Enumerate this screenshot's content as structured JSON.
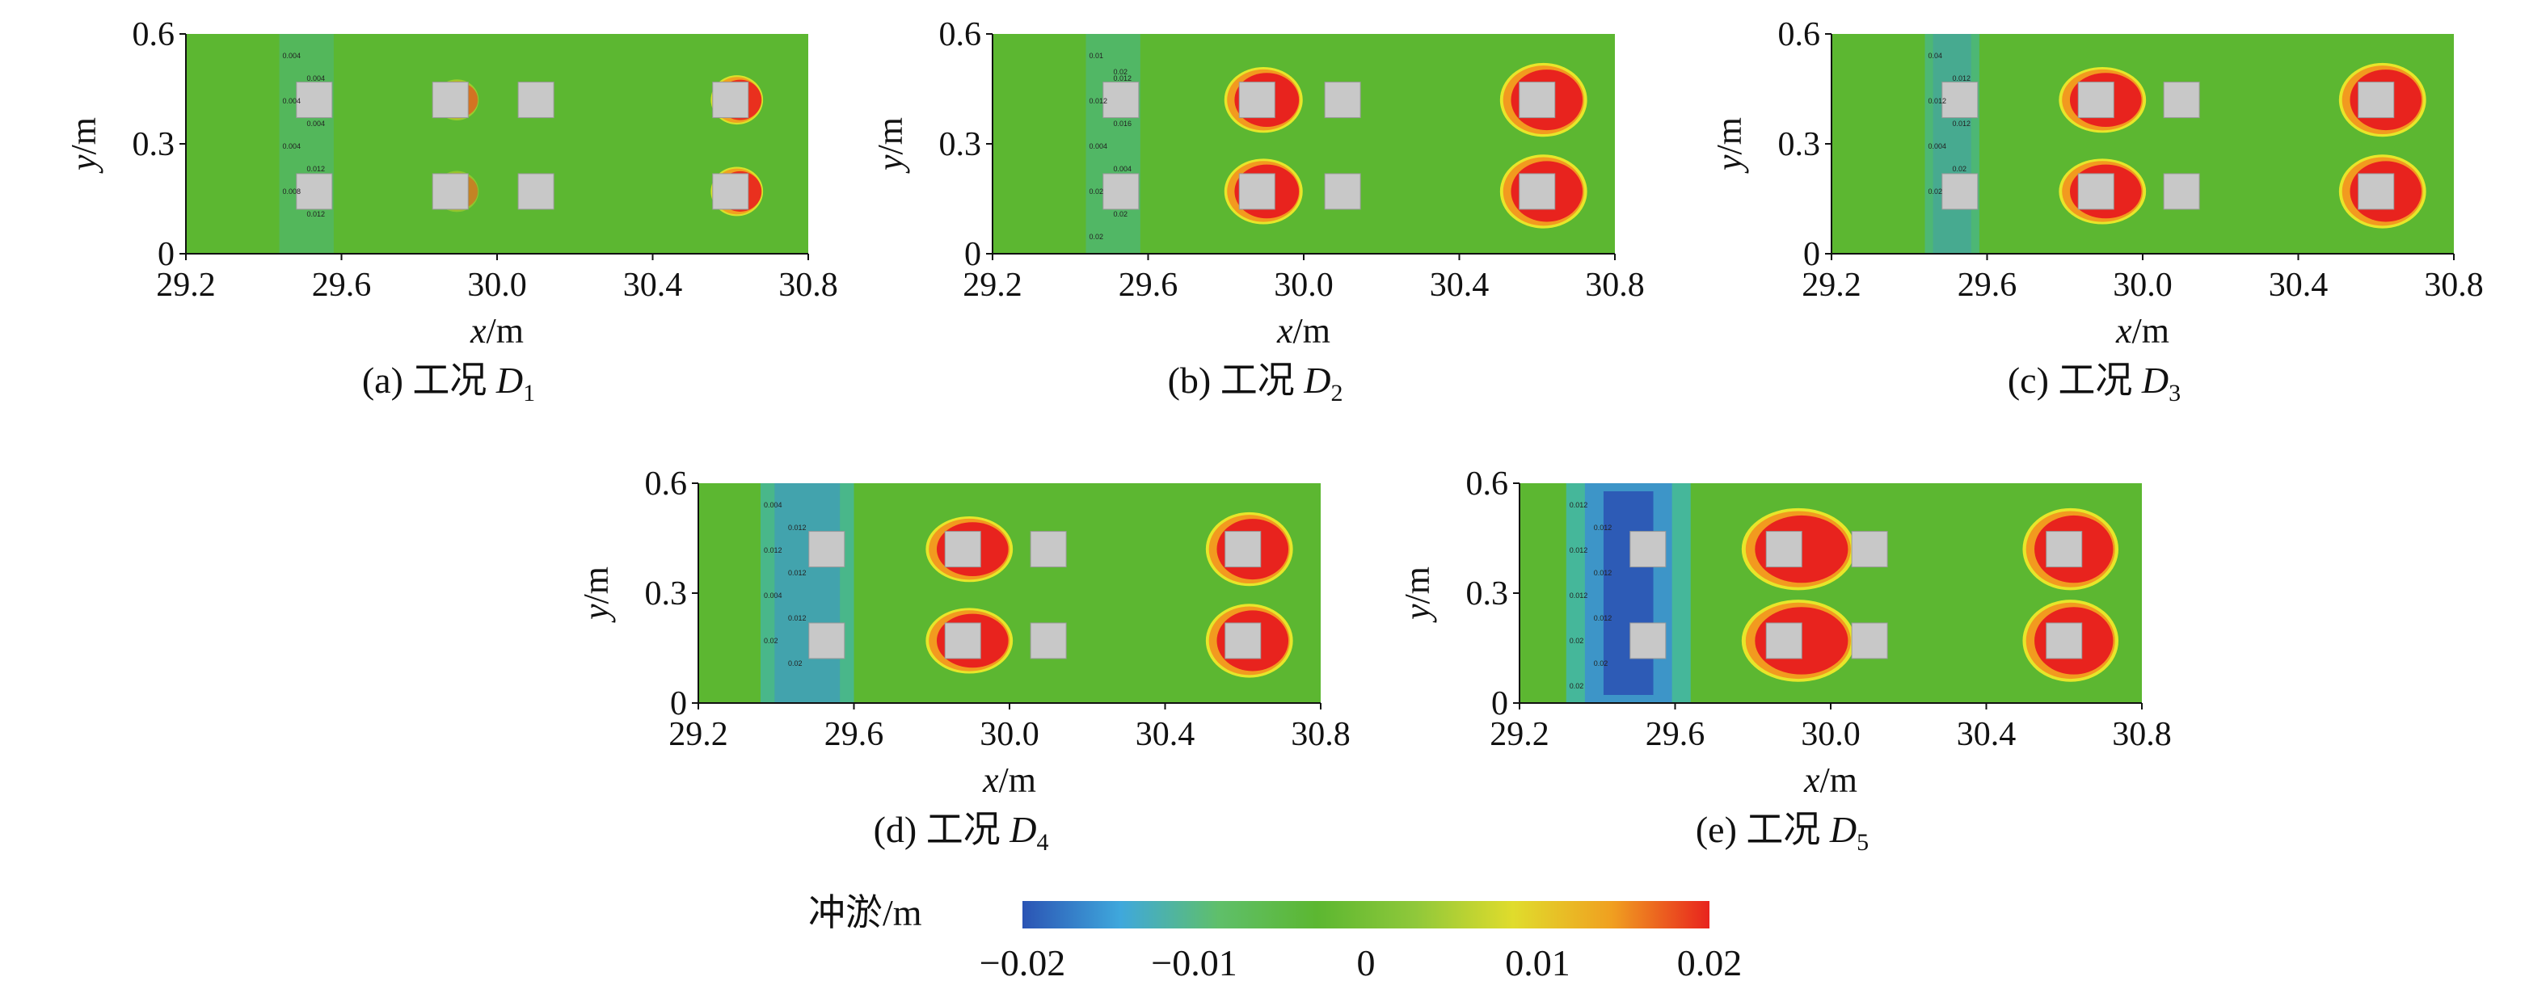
{
  "chart_data": [
    {
      "type": "heatmap",
      "panel": "(a)",
      "caption_prefix": "(a) 工况 ",
      "caption_var": "D",
      "caption_sub": "1",
      "xlabel_var": "x",
      "xlabel_unit": "/m",
      "ylabel_var": "y",
      "ylabel_unit": "/m",
      "xlim": [
        29.2,
        30.8
      ],
      "ylim": [
        0,
        0.6
      ],
      "xticks": [
        "29.2",
        "29.6",
        "30.0",
        "30.4",
        "30.8"
      ],
      "yticks": [
        "0",
        "0.3",
        "0.6"
      ],
      "piers": [
        [
          29.53,
          0.42
        ],
        [
          29.53,
          0.17
        ],
        [
          29.88,
          0.42
        ],
        [
          29.88,
          0.17
        ],
        [
          30.1,
          0.42
        ],
        [
          30.1,
          0.17
        ],
        [
          30.6,
          0.42
        ],
        [
          30.6,
          0.17
        ]
      ],
      "scour_zone": [
        29.44,
        29.58,
        0.05
      ],
      "deposit_blobs": [
        [
          29.88,
          0.42,
          0.05,
          0.05,
          0.45
        ],
        [
          29.88,
          0.17,
          0.05,
          0.05,
          0.35
        ],
        [
          30.6,
          0.42,
          0.06,
          0.06,
          0.9
        ],
        [
          30.6,
          0.17,
          0.06,
          0.06,
          0.9
        ]
      ],
      "contour_labels": [
        "0.004",
        "0.004",
        "0.004",
        "0.004",
        "0.004",
        "0.012",
        "0.008",
        "0.012"
      ]
    },
    {
      "type": "heatmap",
      "panel": "(b)",
      "caption_prefix": "(b) 工况 ",
      "caption_var": "D",
      "caption_sub": "2",
      "xlabel_var": "x",
      "xlabel_unit": "/m",
      "ylabel_var": "y",
      "ylabel_unit": "/m",
      "xlim": [
        29.2,
        30.8
      ],
      "ylim": [
        0,
        0.6
      ],
      "xticks": [
        "29.2",
        "29.6",
        "30.0",
        "30.4",
        "30.8"
      ],
      "yticks": [
        "0",
        "0.3",
        "0.6"
      ],
      "piers": [
        [
          29.53,
          0.42
        ],
        [
          29.53,
          0.17
        ],
        [
          29.88,
          0.42
        ],
        [
          29.88,
          0.17
        ],
        [
          30.1,
          0.42
        ],
        [
          30.1,
          0.17
        ],
        [
          30.6,
          0.42
        ],
        [
          30.6,
          0.17
        ]
      ],
      "scour_zone": [
        29.44,
        29.58,
        0.15
      ],
      "deposit_blobs": [
        [
          29.88,
          0.42,
          0.09,
          0.08,
          1.0
        ],
        [
          29.88,
          0.17,
          0.09,
          0.08,
          1.0
        ],
        [
          30.6,
          0.42,
          0.1,
          0.09,
          1.0
        ],
        [
          30.6,
          0.17,
          0.1,
          0.09,
          1.0
        ]
      ],
      "contour_labels": [
        "0.01",
        "0.012",
        "0.012",
        "0.016",
        "0.004",
        "0.004",
        "0.02",
        "0.02",
        "0.02",
        "0.02"
      ]
    },
    {
      "type": "heatmap",
      "panel": "(c)",
      "caption_prefix": "(c) 工况 ",
      "caption_var": "D",
      "caption_sub": "3",
      "xlabel_var": "x",
      "xlabel_unit": "/m",
      "ylabel_var": "y",
      "ylabel_unit": "/m",
      "xlim": [
        29.2,
        30.8
      ],
      "ylim": [
        0,
        0.6
      ],
      "xticks": [
        "29.2",
        "29.6",
        "30.0",
        "30.4",
        "30.8"
      ],
      "yticks": [
        "0",
        "0.3",
        "0.6"
      ],
      "piers": [
        [
          29.53,
          0.42
        ],
        [
          29.53,
          0.17
        ],
        [
          29.88,
          0.42
        ],
        [
          29.88,
          0.17
        ],
        [
          30.1,
          0.42
        ],
        [
          30.1,
          0.17
        ],
        [
          30.6,
          0.42
        ],
        [
          30.6,
          0.17
        ]
      ],
      "scour_zone": [
        29.44,
        29.58,
        0.3
      ],
      "deposit_blobs": [
        [
          29.88,
          0.42,
          0.1,
          0.08,
          1.0
        ],
        [
          29.88,
          0.17,
          0.1,
          0.08,
          1.0
        ],
        [
          30.6,
          0.42,
          0.1,
          0.09,
          1.0
        ],
        [
          30.6,
          0.17,
          0.1,
          0.09,
          1.0
        ]
      ],
      "contour_labels": [
        "0.04",
        "0.012",
        "0.012",
        "0.012",
        "0.004",
        "0.02",
        "0.02"
      ]
    },
    {
      "type": "heatmap",
      "panel": "(d)",
      "caption_prefix": "(d) 工况 ",
      "caption_var": "D",
      "caption_sub": "4",
      "xlabel_var": "x",
      "xlabel_unit": "/m",
      "ylabel_var": "y",
      "ylabel_unit": "/m",
      "xlim": [
        29.2,
        30.8
      ],
      "ylim": [
        0,
        0.6
      ],
      "xticks": [
        "29.2",
        "29.6",
        "30.0",
        "30.4",
        "30.8"
      ],
      "yticks": [
        "0",
        "0.3",
        "0.6"
      ],
      "piers": [
        [
          29.53,
          0.42
        ],
        [
          29.53,
          0.17
        ],
        [
          29.88,
          0.42
        ],
        [
          29.88,
          0.17
        ],
        [
          30.1,
          0.42
        ],
        [
          30.1,
          0.17
        ],
        [
          30.6,
          0.42
        ],
        [
          30.6,
          0.17
        ]
      ],
      "scour_zone": [
        29.36,
        29.6,
        0.5
      ],
      "deposit_blobs": [
        [
          29.88,
          0.42,
          0.1,
          0.08,
          1.0
        ],
        [
          29.88,
          0.17,
          0.1,
          0.08,
          1.0
        ],
        [
          30.6,
          0.42,
          0.1,
          0.09,
          1.0
        ],
        [
          30.6,
          0.17,
          0.1,
          0.09,
          1.0
        ]
      ],
      "contour_labels": [
        "0.004",
        "0.012",
        "0.012",
        "0.012",
        "0.004",
        "0.012",
        "0.02",
        "0.02"
      ]
    },
    {
      "type": "heatmap",
      "panel": "(e)",
      "caption_prefix": "(e) 工况 ",
      "caption_var": "D",
      "caption_sub": "5",
      "xlabel_var": "x",
      "xlabel_unit": "/m",
      "ylabel_var": "y",
      "ylabel_unit": "/m",
      "xlim": [
        29.2,
        30.8
      ],
      "ylim": [
        0,
        0.6
      ],
      "xticks": [
        "29.2",
        "29.6",
        "30.0",
        "30.4",
        "30.8"
      ],
      "yticks": [
        "0",
        "0.3",
        "0.6"
      ],
      "piers": [
        [
          29.53,
          0.42
        ],
        [
          29.53,
          0.17
        ],
        [
          29.88,
          0.42
        ],
        [
          29.88,
          0.17
        ],
        [
          30.1,
          0.42
        ],
        [
          30.1,
          0.17
        ],
        [
          30.6,
          0.42
        ],
        [
          30.6,
          0.17
        ]
      ],
      "scour_zone": [
        29.32,
        29.64,
        0.85
      ],
      "deposit_blobs": [
        [
          29.9,
          0.42,
          0.13,
          0.1,
          1.0
        ],
        [
          29.9,
          0.17,
          0.13,
          0.1,
          1.0
        ],
        [
          30.6,
          0.42,
          0.11,
          0.1,
          1.0
        ],
        [
          30.6,
          0.17,
          0.11,
          0.1,
          1.0
        ]
      ],
      "contour_labels": [
        "0.012",
        "0.012",
        "0.012",
        "0.012",
        "0.012",
        "0.012",
        "0.02",
        "0.02",
        "0.02"
      ]
    }
  ],
  "colorbar": {
    "title": "冲淤/m",
    "ticks": [
      "−0.02",
      "−0.01",
      "0",
      "0.01",
      "0.02"
    ],
    "range": [
      -0.02,
      0.02
    ],
    "stops": [
      "#2b54b4",
      "#3fa8dc",
      "#5fbf6a",
      "#5cb731",
      "#8fc83a",
      "#e0dc2c",
      "#f0a020",
      "#e8231e"
    ]
  },
  "colors": {
    "background_field": "#5cb731",
    "pier": "#c8c8c8",
    "deposit_core": "#e8231e",
    "deposit_ring_orange": "#f29a1f",
    "deposit_ring_yellow": "#e7e62a",
    "scour_light": "#45b79a",
    "scour_mid": "#3c8fd0",
    "scour_deep": "#2b54b4"
  }
}
